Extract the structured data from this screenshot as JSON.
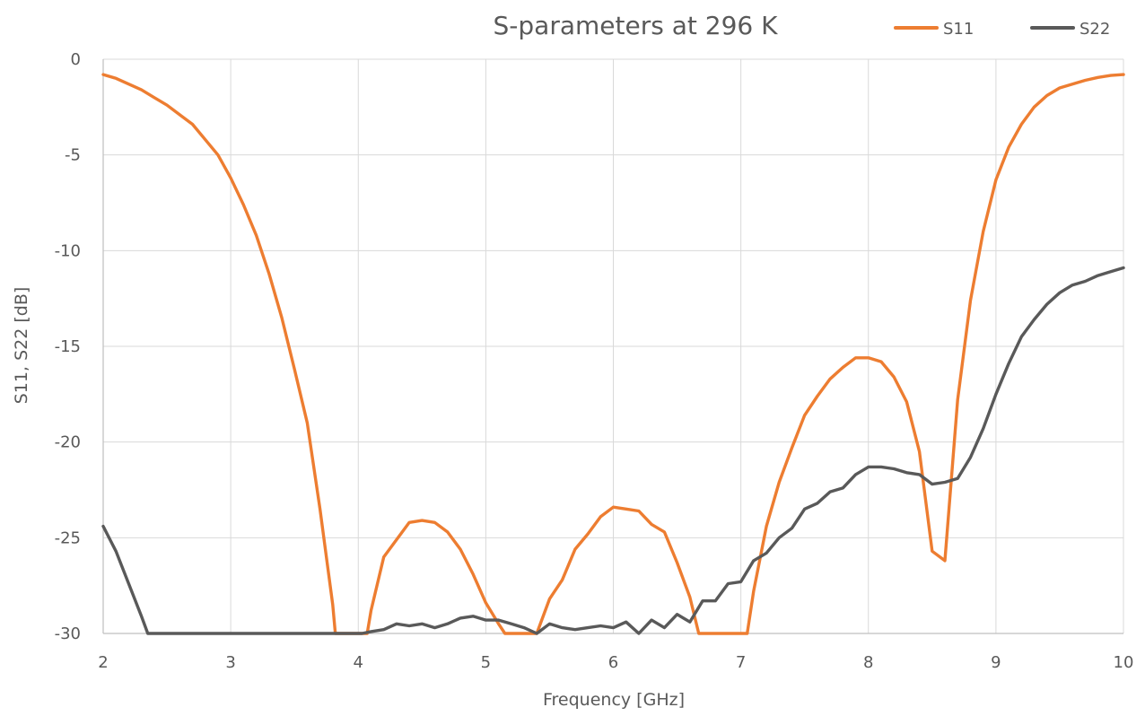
{
  "chart_data": {
    "type": "line",
    "title": "S-parameters at 296 K",
    "xlabel": "Frequency [GHz]",
    "ylabel": "S11, S22 [dB]",
    "xlim": [
      2,
      10
    ],
    "ylim": [
      -30,
      0
    ],
    "xticks": [
      2,
      3,
      4,
      5,
      6,
      7,
      8,
      9,
      10
    ],
    "yticks": [
      0,
      -5,
      -10,
      -15,
      -20,
      -25,
      -30
    ],
    "grid": true,
    "legend_position": "top-right",
    "series": [
      {
        "name": "S11",
        "color": "#ed7d31",
        "x": [
          2.0,
          2.1,
          2.2,
          2.3,
          2.4,
          2.5,
          2.6,
          2.7,
          2.8,
          2.9,
          3.0,
          3.1,
          3.2,
          3.3,
          3.4,
          3.5,
          3.6,
          3.7,
          3.8,
          3.82,
          4.07,
          4.1,
          4.2,
          4.3,
          4.4,
          4.5,
          4.6,
          4.7,
          4.8,
          4.9,
          5.0,
          5.1,
          5.15,
          5.4,
          5.5,
          5.6,
          5.7,
          5.8,
          5.9,
          6.0,
          6.1,
          6.2,
          6.3,
          6.4,
          6.5,
          6.6,
          6.67,
          7.05,
          7.1,
          7.2,
          7.3,
          7.4,
          7.5,
          7.6,
          7.7,
          7.8,
          7.9,
          8.0,
          8.1,
          8.2,
          8.3,
          8.4,
          8.5,
          8.6,
          8.7,
          8.8,
          8.9,
          9.0,
          9.1,
          9.2,
          9.3,
          9.4,
          9.5,
          9.6,
          9.7,
          9.8,
          9.9,
          10.0
        ],
        "y": [
          -0.8,
          -1.0,
          -1.3,
          -1.6,
          -2.0,
          -2.4,
          -2.9,
          -3.4,
          -4.2,
          -5.0,
          -6.2,
          -7.6,
          -9.2,
          -11.2,
          -13.5,
          -16.2,
          -19.0,
          -23.5,
          -28.5,
          -30.0,
          -30.0,
          -28.8,
          -26.0,
          -25.1,
          -24.2,
          -24.1,
          -24.2,
          -24.7,
          -25.6,
          -26.9,
          -28.4,
          -29.5,
          -30.0,
          -30.0,
          -28.2,
          -27.2,
          -25.6,
          -24.8,
          -23.9,
          -23.4,
          -23.5,
          -23.6,
          -24.3,
          -24.7,
          -26.3,
          -28.1,
          -30.0,
          -30.0,
          -27.8,
          -24.4,
          -22.1,
          -20.3,
          -18.6,
          -17.6,
          -16.7,
          -16.1,
          -15.6,
          -15.6,
          -15.8,
          -16.6,
          -17.9,
          -20.5,
          -25.7,
          -26.2,
          -17.8,
          -12.6,
          -9.0,
          -6.3,
          -4.6,
          -3.4,
          -2.5,
          -1.9,
          -1.5,
          -1.3,
          -1.1,
          -0.95,
          -0.85,
          -0.8
        ]
      },
      {
        "name": "S22",
        "color": "#595959",
        "x": [
          2.0,
          2.1,
          2.2,
          2.3,
          2.35,
          4.03,
          4.1,
          4.2,
          4.3,
          4.4,
          4.5,
          4.6,
          4.7,
          4.8,
          4.9,
          5.0,
          5.1,
          5.2,
          5.3,
          5.4,
          5.5,
          5.6,
          5.7,
          5.8,
          5.9,
          6.0,
          6.1,
          6.2,
          6.3,
          6.4,
          6.5,
          6.6,
          6.7,
          6.8,
          6.9,
          7.0,
          7.1,
          7.2,
          7.3,
          7.4,
          7.5,
          7.6,
          7.7,
          7.8,
          7.9,
          8.0,
          8.1,
          8.2,
          8.3,
          8.4,
          8.5,
          8.6,
          8.7,
          8.8,
          8.9,
          9.0,
          9.1,
          9.2,
          9.3,
          9.4,
          9.5,
          9.6,
          9.7,
          9.8,
          9.9,
          10.0
        ],
        "y": [
          -24.4,
          -25.7,
          -27.4,
          -29.1,
          -30.0,
          -30.0,
          -29.9,
          -29.8,
          -29.5,
          -29.6,
          -29.5,
          -29.7,
          -29.5,
          -29.2,
          -29.1,
          -29.3,
          -29.3,
          -29.5,
          -29.7,
          -30.0,
          -29.5,
          -29.7,
          -29.8,
          -29.7,
          -29.6,
          -29.7,
          -29.4,
          -30.0,
          -29.3,
          -29.7,
          -29.0,
          -29.4,
          -28.3,
          -28.3,
          -27.4,
          -27.3,
          -26.2,
          -25.8,
          -25.0,
          -24.5,
          -23.5,
          -23.2,
          -22.6,
          -22.4,
          -21.7,
          -21.3,
          -21.3,
          -21.4,
          -21.6,
          -21.7,
          -22.2,
          -22.1,
          -21.9,
          -20.8,
          -19.3,
          -17.5,
          -15.9,
          -14.5,
          -13.6,
          -12.8,
          -12.2,
          -11.8,
          -11.6,
          -11.3,
          -11.1,
          -10.9
        ]
      }
    ]
  }
}
